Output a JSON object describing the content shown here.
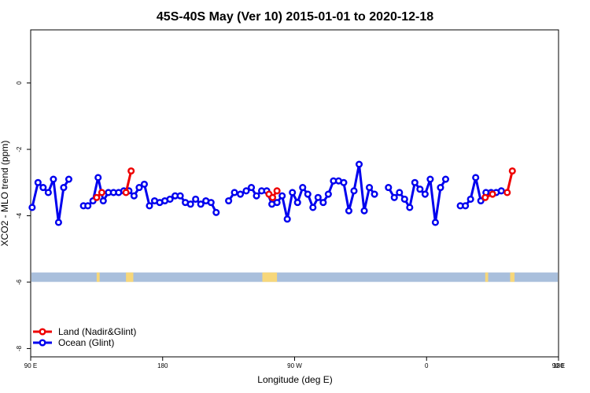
{
  "chart_data": {
    "type": "line",
    "title": "45S-40S May (Ver 10)   2015-01-01 to 2020-12-18",
    "xlabel": "Longitude (deg E)",
    "ylabel": "XCO2 - MLO trend (ppm)",
    "xlim": [
      90,
      450
    ],
    "ylim": [
      -8.25,
      1.6
    ],
    "x_ticks": [
      {
        "value": 90,
        "label": "90 E"
      },
      {
        "value": 180,
        "label": "180"
      },
      {
        "value": 270,
        "label": "90 W"
      },
      {
        "value": 360,
        "label": "0"
      },
      {
        "value": 450,
        "label": "90 E"
      },
      {
        "value": 540,
        "label": "180"
      }
    ],
    "y_ticks": [
      {
        "value": 0,
        "label": "0"
      },
      {
        "value": -2,
        "label": "-2"
      },
      {
        "value": -4,
        "label": "-4"
      },
      {
        "value": -6,
        "label": "-6"
      },
      {
        "value": -8,
        "label": "-8"
      }
    ],
    "x_scale_note": "continuous longitude wrapping 90E to 180",
    "legend_position": "bottom-left",
    "land_ocean_band": {
      "y": -5.85,
      "ocean_color": "#a9bfdc",
      "land_color": "#f7d77a"
    },
    "series": [
      {
        "name": "Land (Nadir&Glint)",
        "color": "#ee0000",
        "segments": [
          [
            [
              135,
              -3.45
            ],
            [
              138.5,
              -3.3
            ]
          ],
          [
            [
              155,
              -3.3
            ],
            [
              158.5,
              -2.65
            ]
          ],
          [
            [
              252.5,
              -3.35
            ],
            [
              255,
              -3.45
            ],
            [
              258,
              -3.25
            ]
          ],
          [
            [
              400,
              -3.45
            ],
            [
              405,
              -3.35
            ]
          ],
          [
            [
              415,
              -3.3
            ],
            [
              418.5,
              -2.65
            ]
          ]
        ]
      },
      {
        "name": "Ocean (Glint)",
        "color": "#0000ee",
        "segments": [
          [
            [
              91,
              -3.75
            ],
            [
              95,
              -3.0
            ],
            [
              98.5,
              -3.15
            ],
            [
              102,
              -3.3
            ],
            [
              105.5,
              -2.9
            ],
            [
              109,
              -4.2
            ],
            [
              112.5,
              -3.15
            ],
            [
              116,
              -2.9
            ]
          ],
          [
            [
              126,
              -3.7
            ],
            [
              129,
              -3.7
            ],
            [
              132.5,
              -3.55
            ],
            [
              136,
              -2.85
            ],
            [
              139.5,
              -3.55
            ],
            [
              143,
              -3.3
            ],
            [
              146.5,
              -3.3
            ],
            [
              150,
              -3.3
            ],
            [
              153.5,
              -3.25
            ],
            [
              157,
              -3.25
            ],
            [
              160.5,
              -3.4
            ],
            [
              164,
              -3.15
            ],
            [
              167.5,
              -3.05
            ],
            [
              171,
              -3.7
            ],
            [
              174.5,
              -3.55
            ],
            [
              178,
              -3.6
            ],
            [
              181.5,
              -3.55
            ],
            [
              185,
              -3.5
            ],
            [
              188.5,
              -3.4
            ],
            [
              192,
              -3.4
            ],
            [
              195.5,
              -3.6
            ],
            [
              199,
              -3.65
            ],
            [
              202.5,
              -3.5
            ],
            [
              206,
              -3.65
            ],
            [
              209.5,
              -3.55
            ],
            [
              213,
              -3.6
            ],
            [
              216.5,
              -3.9
            ]
          ],
          [
            [
              225,
              -3.55
            ],
            [
              229,
              -3.3
            ],
            [
              233,
              -3.35
            ],
            [
              237,
              -3.25
            ],
            [
              240.5,
              -3.15
            ],
            [
              244,
              -3.4
            ],
            [
              247.5,
              -3.25
            ],
            [
              251,
              -3.25
            ],
            [
              254.5,
              -3.65
            ],
            [
              258,
              -3.6
            ],
            [
              261.5,
              -3.4
            ],
            [
              265,
              -4.1
            ],
            [
              268.5,
              -3.3
            ],
            [
              272,
              -3.6
            ],
            [
              275.5,
              -3.15
            ],
            [
              279,
              -3.35
            ],
            [
              282.5,
              -3.75
            ],
            [
              286,
              -3.45
            ],
            [
              289.5,
              -3.6
            ],
            [
              293,
              -3.35
            ],
            [
              296.5,
              -2.95
            ],
            [
              300,
              -2.95
            ],
            [
              303.5,
              -3.0
            ],
            [
              307,
              -3.85
            ],
            [
              310.5,
              -3.25
            ],
            [
              314,
              -2.45
            ],
            [
              317.5,
              -3.85
            ],
            [
              321,
              -3.15
            ],
            [
              324.5,
              -3.35
            ]
          ],
          [
            [
              334,
              -3.15
            ],
            [
              338,
              -3.45
            ],
            [
              341.5,
              -3.3
            ],
            [
              345,
              -3.5
            ],
            [
              348.5,
              -3.75
            ],
            [
              352,
              -3.0
            ],
            [
              355.5,
              -3.2
            ],
            [
              359,
              -3.35
            ],
            [
              362.5,
              -2.9
            ],
            [
              366,
              -4.2
            ],
            [
              369.5,
              -3.15
            ],
            [
              373,
              -2.9
            ]
          ],
          [
            [
              383,
              -3.7
            ],
            [
              386.5,
              -3.7
            ],
            [
              390,
              -3.5
            ],
            [
              393.5,
              -2.85
            ],
            [
              397,
              -3.55
            ],
            [
              400.5,
              -3.3
            ],
            [
              404,
              -3.3
            ],
            [
              407.5,
              -3.3
            ],
            [
              411,
              -3.25
            ]
          ]
        ]
      }
    ]
  }
}
